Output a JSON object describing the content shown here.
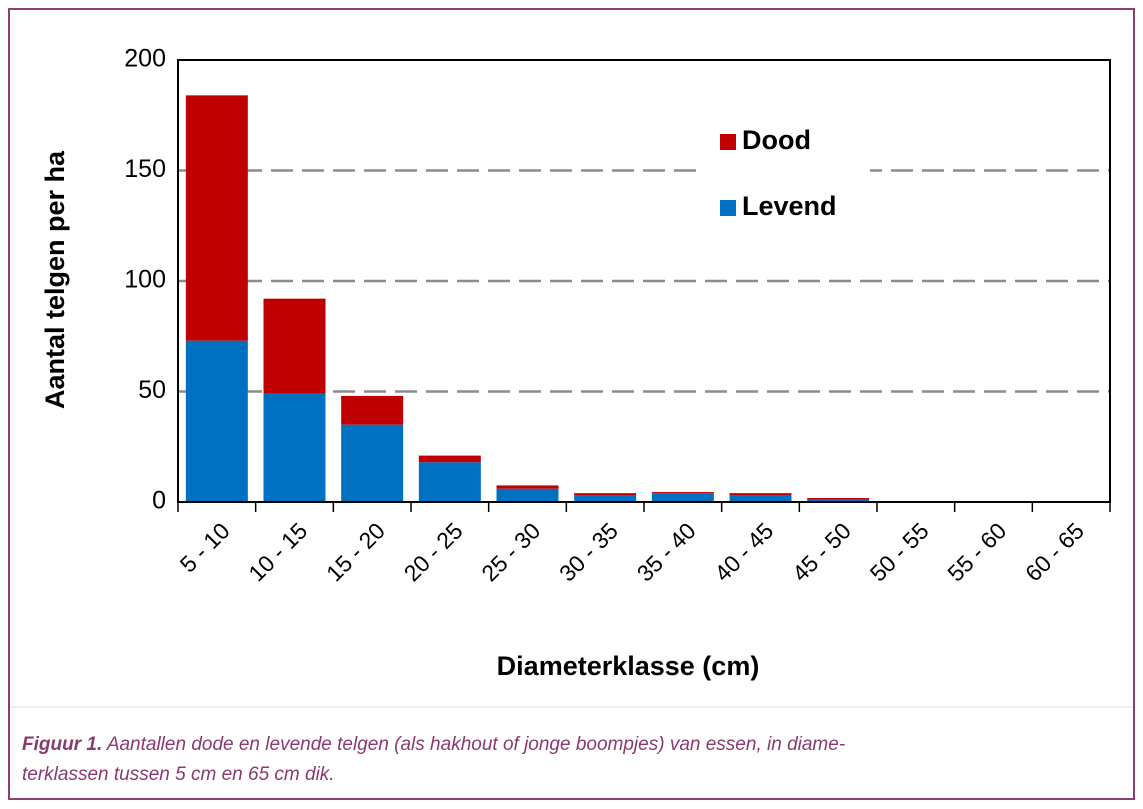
{
  "chart_data": {
    "type": "stacked_bar",
    "y_label": "Aantal telgen per ha",
    "x_label": "Diameterklasse (cm)",
    "categories": [
      "5 - 10",
      "10 - 15",
      "15 - 20",
      "20 - 25",
      "25 - 30",
      "30 - 35",
      "35 - 40",
      "40 - 45",
      "45 - 50",
      "50 - 55",
      "55 - 60",
      "60 - 65"
    ],
    "series": [
      {
        "name": "Levend",
        "color": "#0070c0",
        "values": [
          73,
          49,
          35,
          18,
          6,
          3,
          4,
          3,
          1,
          0,
          0,
          0
        ]
      },
      {
        "name": "Dood",
        "color": "#c00000",
        "values": [
          111,
          43,
          13,
          3,
          1.5,
          1,
          0.5,
          1,
          0.8,
          0,
          0,
          0
        ]
      }
    ],
    "ylim": [
      0,
      200
    ],
    "yticks": [
      0,
      50,
      100,
      150,
      200
    ],
    "grid": true,
    "legend": "top-right"
  },
  "caption": {
    "label": "Figuur 1.",
    "line1": "Aantallen dode en levende telgen (als hakhout of jonge boompjes) van essen, in diame-",
    "line2": "terklassen tussen 5 cm en 65 cm dik."
  }
}
